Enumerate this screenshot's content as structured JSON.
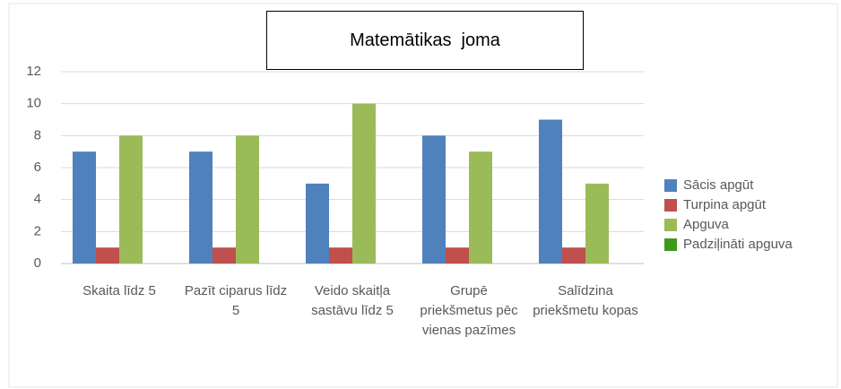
{
  "chart_data": {
    "type": "bar",
    "title": "Matemātikas  joma",
    "categories": [
      "Skaita līdz 5",
      "Pazīt ciparus līdz 5",
      "Veido skaitļa sastāvu līdz 5",
      "Grupē priekšmetus pēc vienas pazīmes",
      "Salīdzina priekšmetu kopas"
    ],
    "series": [
      {
        "name": "Sācis apgūt",
        "color": "#4f81bd",
        "values": [
          7,
          7,
          5,
          8,
          9
        ]
      },
      {
        "name": "Turpina apgūt",
        "color": "#c0504d",
        "values": [
          1,
          1,
          1,
          1,
          1
        ]
      },
      {
        "name": "Apguva",
        "color": "#9bbb59",
        "values": [
          8,
          8,
          10,
          7,
          5
        ]
      },
      {
        "name": "Padziļināti apguva",
        "color": "#3d9a1d",
        "values": [
          0,
          0,
          0,
          0,
          0
        ]
      }
    ],
    "ylim": [
      0,
      12
    ],
    "yticks": [
      0,
      2,
      4,
      6,
      8,
      10,
      12
    ],
    "grid": true,
    "legend": "right"
  }
}
